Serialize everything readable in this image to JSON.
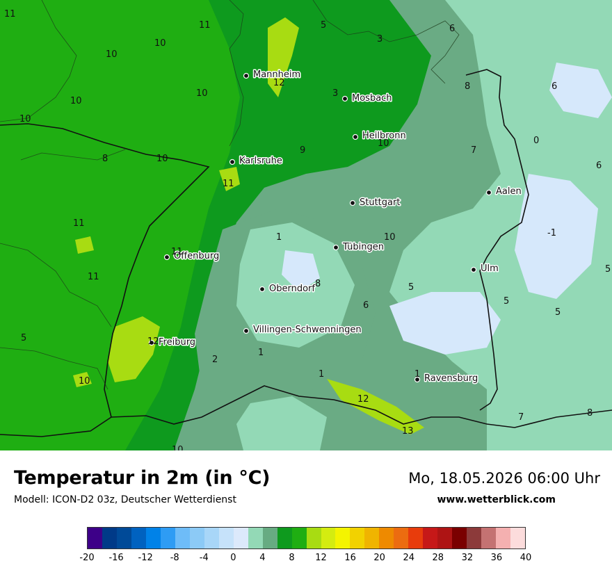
{
  "title": "Temperatur in 2m (in °C)",
  "model": "Modell: ICON-D2 03z, Deutscher Wetterdienst",
  "datetime": "Mo, 18.05.2026 06:00 Uhr",
  "site": "www.wetterblick.com",
  "colors": {
    "base_green": "#1fae12",
    "mid_green": "#0e9a1e",
    "gray_green": "#6aab84",
    "mint": "#93d9b6",
    "pale_blue": "#d6e8fb",
    "lime": "#a8dc12"
  },
  "cities": [
    {
      "name": "Mannheim"
    },
    {
      "name": "Mosbach"
    },
    {
      "name": "Heilbronn"
    },
    {
      "name": "Karlsruhe"
    },
    {
      "name": "Stuttgart"
    },
    {
      "name": "Aalen"
    },
    {
      "name": "Tübingen"
    },
    {
      "name": "Offenburg"
    },
    {
      "name": "Ulm"
    },
    {
      "name": "Oberndorf"
    },
    {
      "name": "Villingen-Schwenningen"
    },
    {
      "name": "Freiburg"
    },
    {
      "name": "Ravensburg"
    }
  ],
  "isotherm_labels": [
    "11",
    "10",
    "11",
    "10",
    "10",
    "12",
    "10",
    "10",
    "8",
    "10",
    "9",
    "11",
    "11",
    "11",
    "11",
    "5",
    "12",
    "10",
    "2",
    "1",
    "1",
    "1",
    "1",
    "8",
    "6",
    "5",
    "5",
    "5",
    "6",
    "8",
    "7",
    "0",
    "6",
    "-1",
    "5",
    "3",
    "5",
    "3",
    "6",
    "10",
    "12",
    "13",
    "7",
    "8",
    "10",
    "10"
  ],
  "legend": {
    "colors": [
      "#3d0088",
      "#003a88",
      "#004a98",
      "#0062c0",
      "#0082e8",
      "#2e9cf4",
      "#6ebcf8",
      "#8ccaf6",
      "#a8d6f8",
      "#c6e2fa",
      "#dce9fb",
      "#93d9b6",
      "#67ab82",
      "#0e9a1e",
      "#1fae12",
      "#a8dc12",
      "#d4ec10",
      "#f4f400",
      "#f2d200",
      "#f0b400",
      "#ee8a00",
      "#ec6c10",
      "#e83c0c",
      "#c61818",
      "#ae1414",
      "#7a0000",
      "#8c3a3a",
      "#c47272",
      "#f4b0b0",
      "#fcdcdc"
    ],
    "ticks": [
      "-20",
      "-16",
      "-12",
      "-8",
      "-4",
      "0",
      "4",
      "8",
      "12",
      "16",
      "20",
      "24",
      "28",
      "32",
      "36",
      "40"
    ]
  }
}
